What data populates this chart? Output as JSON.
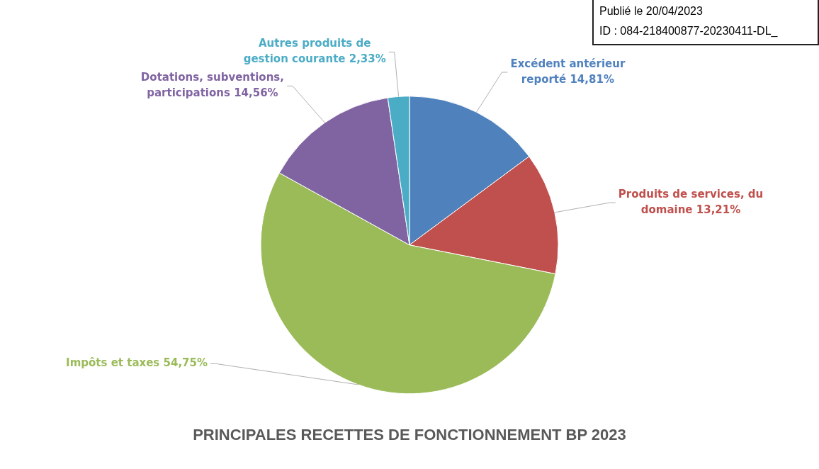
{
  "chart_data": {
    "type": "pie",
    "title": "PRINCIPALES RECETTES DE FONCTIONNEMENT BP 2023",
    "categories": [
      "Excédent antérieur reporté",
      "Produits de services, du domaine",
      "Impôts et taxes",
      "Dotations, subventions, participations",
      "Autres produits de gestion courante"
    ],
    "values": [
      14.81,
      13.21,
      54.75,
      14.56,
      2.33
    ],
    "value_labels": [
      "14,81%",
      "13,21%",
      "54,75%",
      "14,56%",
      "2,33%"
    ],
    "colors": [
      "#4f81bd",
      "#c0504d",
      "#9bbb59",
      "#8064a2",
      "#4bacc6"
    ],
    "legend": false,
    "annotations": [
      "Publié le 20/04/2023",
      "ID : 084-218400877-20230411-DL_"
    ]
  }
}
